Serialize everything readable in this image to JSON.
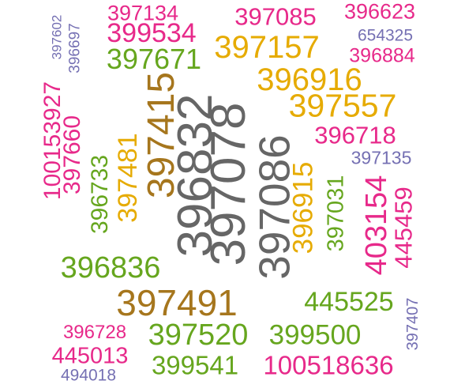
{
  "colors": {
    "magenta": "#e7298a",
    "green": "#66a61e",
    "gold": "#e6ab02",
    "brown": "#a6761d",
    "gray": "#666666",
    "purple": "#7570b3"
  },
  "words": [
    {
      "text": "397134",
      "color": "magenta"
    },
    {
      "text": "397085",
      "color": "magenta"
    },
    {
      "text": "396623",
      "color": "magenta"
    },
    {
      "text": "397602",
      "color": "purple"
    },
    {
      "text": "396697",
      "color": "purple"
    },
    {
      "text": "399534",
      "color": "magenta"
    },
    {
      "text": "654325",
      "color": "purple"
    },
    {
      "text": "397157",
      "color": "gold"
    },
    {
      "text": "396884",
      "color": "magenta"
    },
    {
      "text": "397671",
      "color": "green"
    },
    {
      "text": "396916",
      "color": "gold"
    },
    {
      "text": "397557",
      "color": "gold"
    },
    {
      "text": "100153927",
      "color": "magenta"
    },
    {
      "text": "397660",
      "color": "magenta"
    },
    {
      "text": "397415",
      "color": "brown"
    },
    {
      "text": "396832",
      "color": "gray"
    },
    {
      "text": "397078",
      "color": "gray"
    },
    {
      "text": "397086",
      "color": "gray"
    },
    {
      "text": "396718",
      "color": "magenta"
    },
    {
      "text": "397135",
      "color": "purple"
    },
    {
      "text": "396733",
      "color": "green"
    },
    {
      "text": "397481",
      "color": "gold"
    },
    {
      "text": "396915",
      "color": "gold"
    },
    {
      "text": "397031",
      "color": "green"
    },
    {
      "text": "403154",
      "color": "magenta"
    },
    {
      "text": "445459",
      "color": "magenta"
    },
    {
      "text": "396836",
      "color": "green"
    },
    {
      "text": "397491",
      "color": "brown"
    },
    {
      "text": "445525",
      "color": "green"
    },
    {
      "text": "397407",
      "color": "purple"
    },
    {
      "text": "396728",
      "color": "magenta"
    },
    {
      "text": "397520",
      "color": "green"
    },
    {
      "text": "399500",
      "color": "green"
    },
    {
      "text": "445013",
      "color": "magenta"
    },
    {
      "text": "494018",
      "color": "purple"
    },
    {
      "text": "399541",
      "color": "green"
    },
    {
      "text": "100518636",
      "color": "magenta"
    }
  ]
}
